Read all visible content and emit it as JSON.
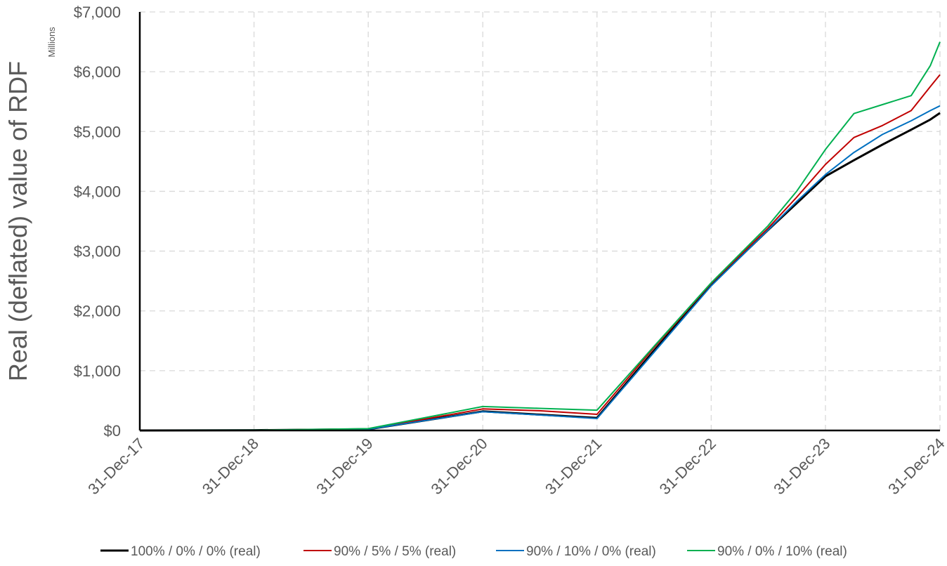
{
  "chart_data": {
    "type": "line",
    "ylabel": "Real (deflated) value of RDF",
    "yunit_label": "Millions",
    "xlabel": "",
    "title": "",
    "x_ticks": [
      "31-Dec-17",
      "31-Dec-18",
      "31-Dec-19",
      "31-Dec-20",
      "31-Dec-21",
      "31-Dec-22",
      "31-Dec-23",
      "31-Dec-24"
    ],
    "y_ticks": [
      "$0",
      "$1,000",
      "$2,000",
      "$3,000",
      "$4,000",
      "$5,000",
      "$6,000",
      "$7,000"
    ],
    "ylim": [
      0,
      7000
    ],
    "grid": true,
    "legend_position": "bottom",
    "x_dates": [
      "31-Dec-17",
      "31-Dec-18",
      "31-Dec-19",
      "31-Dec-20",
      "30-Jun-21",
      "31-Dec-21",
      "30-Jun-22",
      "31-Dec-22",
      "30-Jun-23",
      "30-Sep-23",
      "31-Dec-23",
      "31-Mar-24",
      "30-Jun-24",
      "30-Sep-24",
      "30-Nov-24",
      "31-Dec-24"
    ],
    "series": [
      {
        "name": "100% / 0% / 0% (real)",
        "color": "#000000",
        "values": [
          0,
          5,
          20,
          320,
          265,
          210,
          1330,
          2440,
          3350,
          3800,
          4250,
          4520,
          4780,
          5030,
          5200,
          5310
        ]
      },
      {
        "name": "90% / 5% / 5% (real)",
        "color": "#C00000",
        "values": [
          0,
          5,
          25,
          360,
          330,
          270,
          1380,
          2460,
          3380,
          3900,
          4450,
          4900,
          5100,
          5350,
          5750,
          5950
        ]
      },
      {
        "name": "90% / 10% / 0% (real)",
        "color": "#0070C0",
        "values": [
          0,
          5,
          20,
          315,
          260,
          200,
          1300,
          2420,
          3350,
          3830,
          4280,
          4650,
          4950,
          5180,
          5350,
          5430
        ]
      },
      {
        "name": "90% / 0% / 10% (real)",
        "color": "#00B050",
        "values": [
          0,
          5,
          30,
          400,
          370,
          340,
          1400,
          2470,
          3420,
          4000,
          4700,
          5300,
          5450,
          5600,
          6100,
          6500
        ]
      }
    ]
  }
}
